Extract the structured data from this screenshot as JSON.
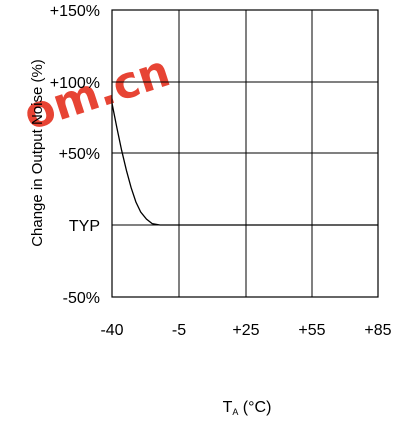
{
  "chart_data": {
    "type": "line",
    "xlabel_main": "T",
    "xlabel_sub": "A",
    "xlabel_unit": " (°C)",
    "ylabel": "Change in Output Noise (%)",
    "x_tick_labels": [
      "-40",
      "-5",
      "+25",
      "+55",
      "+85"
    ],
    "y_tick_labels": [
      "-50%",
      "TYP",
      "+50%",
      "+100%",
      "+150%"
    ],
    "grid": true,
    "series": [
      {
        "points": [
          {
            "x": -40,
            "y": 85
          },
          {
            "x": -37.5,
            "y": 68
          },
          {
            "x": -35,
            "y": 52
          },
          {
            "x": -32.5,
            "y": 38
          },
          {
            "x": -30,
            "y": 26
          },
          {
            "x": -27.5,
            "y": 16
          },
          {
            "x": -25,
            "y": 9
          },
          {
            "x": -22,
            "y": 4
          },
          {
            "x": -19,
            "y": 1
          },
          {
            "x": -15,
            "y": 0
          },
          {
            "x": 85,
            "y": 0
          }
        ]
      }
    ]
  },
  "watermark": {
    "text": "om.cn",
    "color": "#e5301f"
  }
}
